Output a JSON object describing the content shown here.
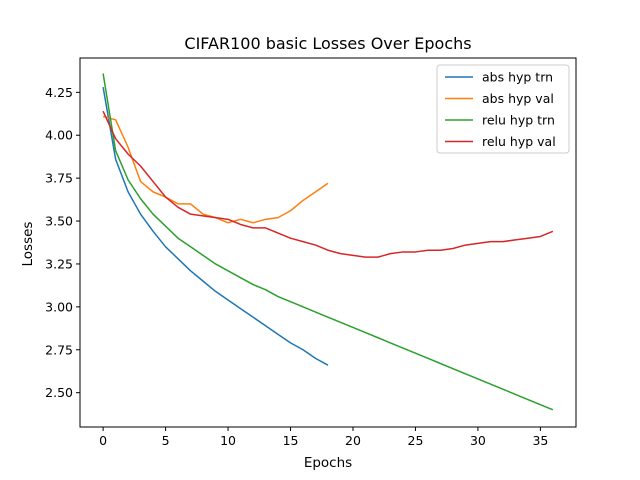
{
  "chart_data": {
    "type": "line",
    "title": "CIFAR100 basic Losses Over Epochs",
    "xlabel": "Epochs",
    "ylabel": "Losses",
    "xlim": [
      -1.85,
      37.85
    ],
    "ylim": [
      2.3,
      4.45
    ],
    "xticks": [
      0,
      5,
      10,
      15,
      20,
      25,
      30,
      35
    ],
    "yticks": [
      2.5,
      2.75,
      3.0,
      3.25,
      3.5,
      3.75,
      4.0,
      4.25
    ],
    "ytick_labels": [
      "2.50",
      "2.75",
      "3.00",
      "3.25",
      "3.50",
      "3.75",
      "4.00",
      "4.25"
    ],
    "grid": false,
    "legend_position": "top-right",
    "series": [
      {
        "name": "abs hyp trn",
        "color": "#1f77b4",
        "x": [
          0,
          1,
          2,
          3,
          4,
          5,
          6,
          7,
          8,
          9,
          10,
          11,
          12,
          13,
          14,
          15,
          16,
          17,
          18
        ],
        "y": [
          4.28,
          3.86,
          3.67,
          3.54,
          3.44,
          3.35,
          3.28,
          3.21,
          3.15,
          3.09,
          3.04,
          2.99,
          2.94,
          2.89,
          2.84,
          2.79,
          2.75,
          2.7,
          2.66
        ]
      },
      {
        "name": "abs hyp val",
        "color": "#ff7f0e",
        "x": [
          0,
          1,
          2,
          3,
          4,
          5,
          6,
          7,
          8,
          9,
          10,
          11,
          12,
          13,
          14,
          15,
          16,
          17,
          18
        ],
        "y": [
          4.11,
          4.09,
          3.93,
          3.73,
          3.67,
          3.64,
          3.6,
          3.6,
          3.54,
          3.52,
          3.49,
          3.51,
          3.49,
          3.51,
          3.52,
          3.56,
          3.62,
          3.67,
          3.72
        ]
      },
      {
        "name": "relu hyp trn",
        "color": "#2ca02c",
        "x": [
          0,
          1,
          2,
          3,
          4,
          5,
          6,
          7,
          8,
          9,
          10,
          11,
          12,
          13,
          14,
          15,
          16,
          17,
          18,
          19,
          20,
          21,
          22,
          23,
          24,
          25,
          26,
          27,
          28,
          29,
          30,
          31,
          32,
          33,
          34,
          35,
          36
        ],
        "y": [
          4.36,
          3.91,
          3.74,
          3.63,
          3.54,
          3.47,
          3.4,
          3.35,
          3.3,
          3.25,
          3.21,
          3.17,
          3.13,
          3.1,
          3.06,
          3.03,
          3.0,
          2.97,
          2.94,
          2.91,
          2.88,
          2.85,
          2.82,
          2.79,
          2.76,
          2.73,
          2.7,
          2.67,
          2.64,
          2.61,
          2.58,
          2.55,
          2.52,
          2.49,
          2.46,
          2.43,
          2.4
        ]
      },
      {
        "name": "relu hyp val",
        "color": "#d62728",
        "x": [
          0,
          1,
          2,
          3,
          4,
          5,
          6,
          7,
          8,
          9,
          10,
          11,
          12,
          13,
          14,
          15,
          16,
          17,
          18,
          19,
          20,
          21,
          22,
          23,
          24,
          25,
          26,
          27,
          28,
          29,
          30,
          31,
          32,
          33,
          34,
          35,
          36
        ],
        "y": [
          4.14,
          3.98,
          3.89,
          3.82,
          3.73,
          3.64,
          3.58,
          3.54,
          3.53,
          3.52,
          3.51,
          3.48,
          3.46,
          3.46,
          3.43,
          3.4,
          3.38,
          3.36,
          3.33,
          3.31,
          3.3,
          3.29,
          3.29,
          3.31,
          3.32,
          3.32,
          3.33,
          3.33,
          3.34,
          3.36,
          3.37,
          3.38,
          3.38,
          3.39,
          3.4,
          3.41,
          3.44
        ]
      }
    ]
  }
}
